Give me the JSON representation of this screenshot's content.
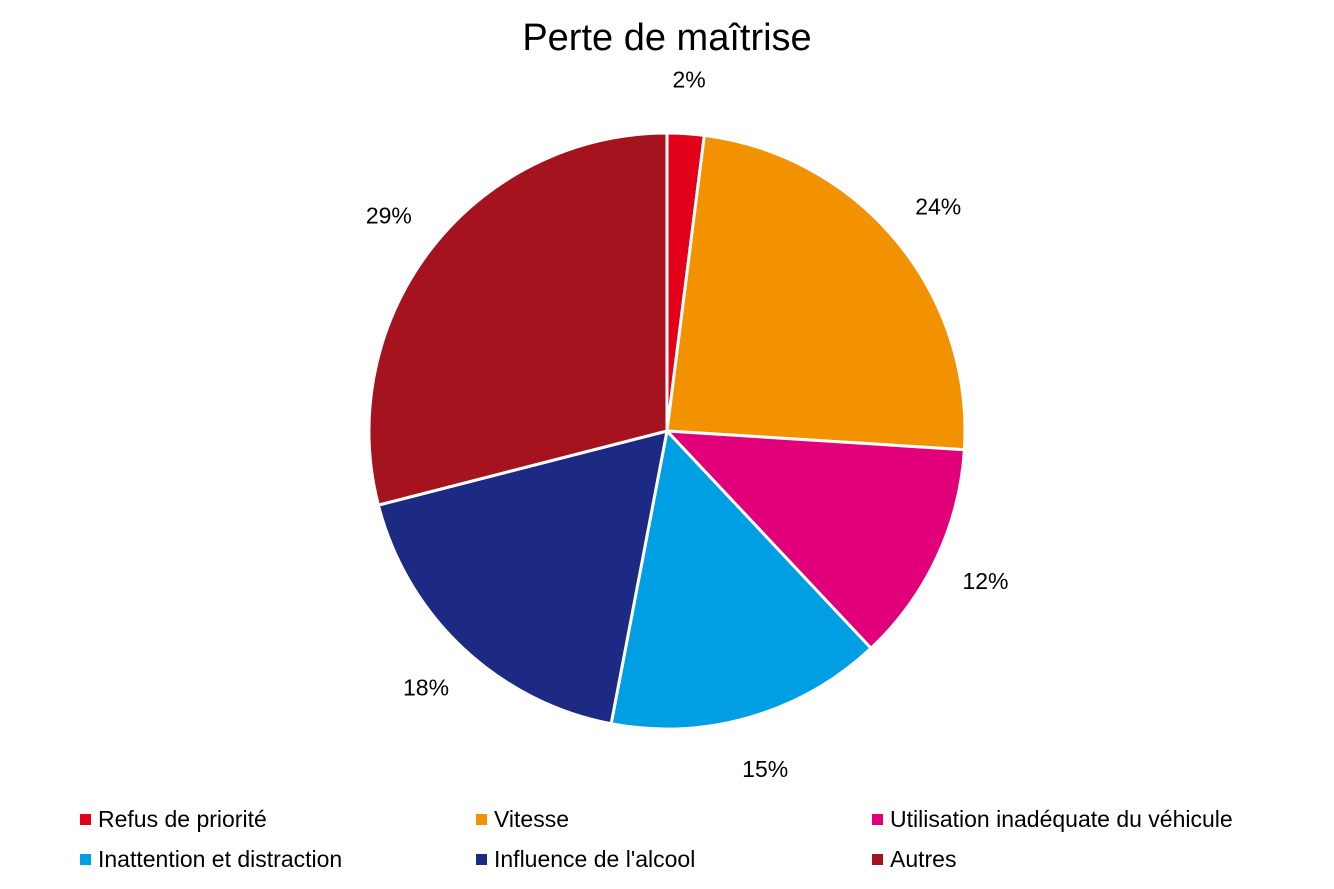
{
  "chart_data": {
    "type": "pie",
    "title": "Perte de maîtrise",
    "legend_position": "bottom",
    "start_angle": "12 o'clock, clockwise",
    "slices": [
      {
        "label": "Refus de priorité",
        "value": 2,
        "value_label": "2%",
        "color": "#e2001a"
      },
      {
        "label": "Vitesse",
        "value": 24,
        "value_label": "24%",
        "color": "#f39200"
      },
      {
        "label": "Utilisation inadéquate du véhicule",
        "value": 12,
        "value_label": "12%",
        "color": "#e2007a"
      },
      {
        "label": "Inattention et distraction",
        "value": 15,
        "value_label": "15%",
        "color": "#009fe3"
      },
      {
        "label": "Influence de l'alcool",
        "value": 18,
        "value_label": "18%",
        "color": "#1d2a84"
      },
      {
        "label": "Autres",
        "value": 29,
        "value_label": "29%",
        "color": "#a5131f"
      }
    ]
  }
}
